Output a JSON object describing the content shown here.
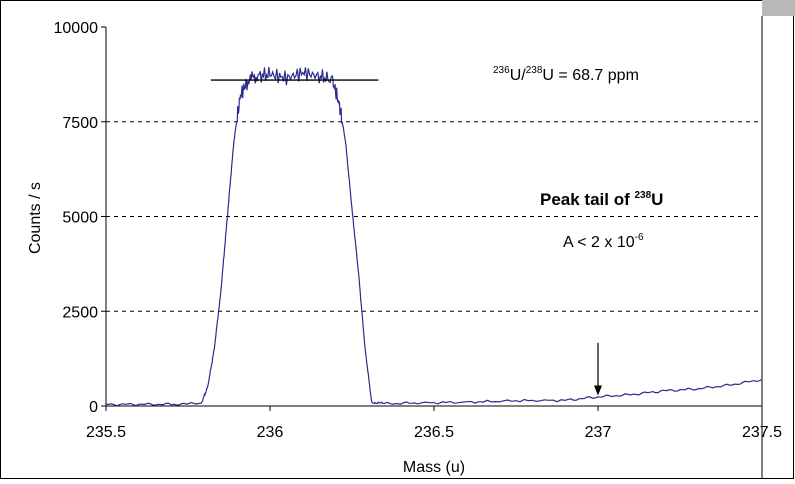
{
  "chart_data": {
    "type": "line",
    "title": "",
    "xlabel": "Mass (u)",
    "ylabel": "Counts / s",
    "xlim": [
      235.5,
      237.5
    ],
    "ylim": [
      0,
      10000
    ],
    "xticks": [
      235.5,
      236,
      236.5,
      237,
      237.5
    ],
    "xtick_labels": [
      "235.5",
      "236",
      "236.5",
      "237",
      "237.5"
    ],
    "yticks": [
      0,
      2500,
      5000,
      7500,
      10000
    ],
    "ytick_labels": [
      "0",
      "2500",
      "5000",
      "7500",
      "10000"
    ],
    "grid": {
      "horizontal": true,
      "style": "dashed"
    },
    "line_color": "#2b2b8f",
    "series": [
      {
        "x": [
          235.5,
          235.6,
          235.7,
          235.79,
          235.81,
          235.83,
          235.85,
          235.87,
          235.89,
          235.91,
          235.93,
          235.96,
          236.0,
          236.05,
          236.1,
          236.15,
          236.19,
          236.21,
          236.23,
          236.25,
          236.27,
          236.29,
          236.31,
          236.35,
          236.45,
          236.6,
          236.75,
          236.9,
          237.0,
          237.1,
          237.2,
          237.3,
          237.4,
          237.5
        ],
        "y": [
          40,
          45,
          45,
          60,
          500,
          1500,
          3000,
          5000,
          7000,
          8200,
          8550,
          8700,
          8750,
          8650,
          8800,
          8700,
          8600,
          8000,
          7000,
          5200,
          3500,
          1500,
          100,
          60,
          80,
          100,
          140,
          150,
          240,
          300,
          400,
          450,
          550,
          700
        ]
      }
    ],
    "annotations": {
      "plateau_level": {
        "y": 8600,
        "x_start": 235.89,
        "x_end": 236.3
      },
      "ratio_label": {
        "iso1": "236",
        "el1": "U",
        "slash": "/",
        "iso2": "238",
        "el2": "U",
        "rest": " = 68.7 ppm"
      },
      "tail_label": {
        "title_main": "Peak tail of ",
        "title_sup": "238",
        "title_el": "U",
        "abundance_main": "A < 2 x 10",
        "abundance_sup": "-6"
      },
      "arrow": {
        "x": 237.0,
        "y_start": 2300,
        "y_end": 120
      }
    }
  }
}
